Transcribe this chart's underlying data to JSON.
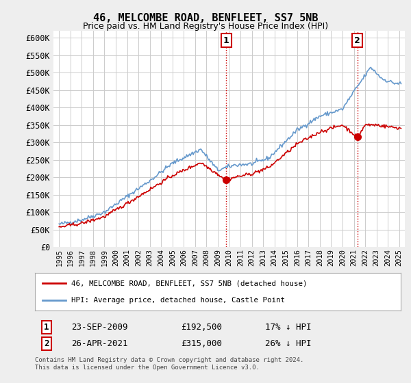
{
  "title": "46, MELCOMBE ROAD, BENFLEET, SS7 5NB",
  "subtitle": "Price paid vs. HM Land Registry's House Price Index (HPI)",
  "hpi_label": "HPI: Average price, detached house, Castle Point",
  "price_label": "46, MELCOMBE ROAD, BENFLEET, SS7 5NB (detached house)",
  "legend_note": "Contains HM Land Registry data © Crown copyright and database right 2024.\nThis data is licensed under the Open Government Licence v3.0.",
  "transaction1": {
    "label": "1",
    "date": "23-SEP-2009",
    "price": "£192,500",
    "hpi": "17% ↓ HPI"
  },
  "transaction2": {
    "label": "2",
    "date": "26-APR-2021",
    "price": "£315,000",
    "hpi": "26% ↓ HPI"
  },
  "ylim": [
    0,
    620000
  ],
  "yticks": [
    0,
    50000,
    100000,
    150000,
    200000,
    250000,
    300000,
    350000,
    400000,
    450000,
    500000,
    550000,
    600000
  ],
  "price_color": "#cc0000",
  "hpi_color": "#6699cc",
  "background_color": "#ffffff",
  "grid_color": "#cccccc",
  "fig_bg": "#eeeeee"
}
